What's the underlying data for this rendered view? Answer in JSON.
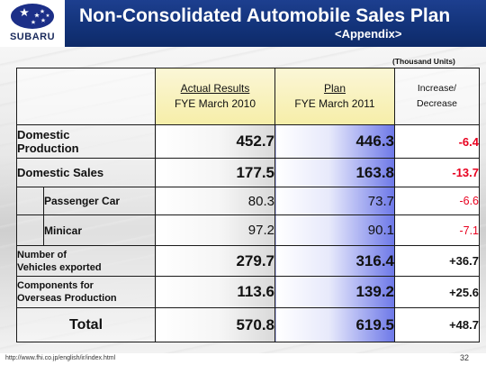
{
  "header": {
    "logo_text": "SUBARU",
    "title": "Non-Consolidated Automobile Sales Plan",
    "subtitle": "<Appendix>"
  },
  "units_note": "(Thousand Units)",
  "table": {
    "columns": {
      "actual_line1": "Actual Results",
      "actual_line2": "FYE March 2010",
      "plan_line1": "Plan",
      "plan_line2": "FYE March 2011",
      "increase_line1": "Increase/",
      "increase_line2": "Decrease"
    },
    "rows": [
      {
        "label_line1": "Domestic",
        "label_line2": "Production",
        "actual": "452.7",
        "plan": "446.3",
        "change": "-6.4"
      },
      {
        "label": "Domestic Sales",
        "actual": "177.5",
        "plan": "163.8",
        "change": "-13.7"
      },
      {
        "label": "Passenger Car",
        "actual": "80.3",
        "plan": "73.7",
        "change": "-6.6"
      },
      {
        "label": "Minicar",
        "actual": "97.2",
        "plan": "90.1",
        "change": "-7.1"
      },
      {
        "label_line1": "Number of",
        "label_line2": "Vehicles exported",
        "actual": "279.7",
        "plan": "316.4",
        "change": "+36.7"
      },
      {
        "label_line1": "Components for",
        "label_line2": "Overseas Production",
        "actual": "113.6",
        "plan": "139.2",
        "change": "+25.6"
      },
      {
        "label": "Total",
        "actual": "570.8",
        "plan": "619.5",
        "change": "+48.7"
      }
    ]
  },
  "footer": {
    "url": "http://www.fhi.co.jp/english/ir/index.html",
    "page_number": "32"
  },
  "colors": {
    "header_blue": "#123278",
    "negative_red": "#e8001f",
    "plan_blue": "#6d78e8",
    "header_yellow": "#f6eea8"
  }
}
